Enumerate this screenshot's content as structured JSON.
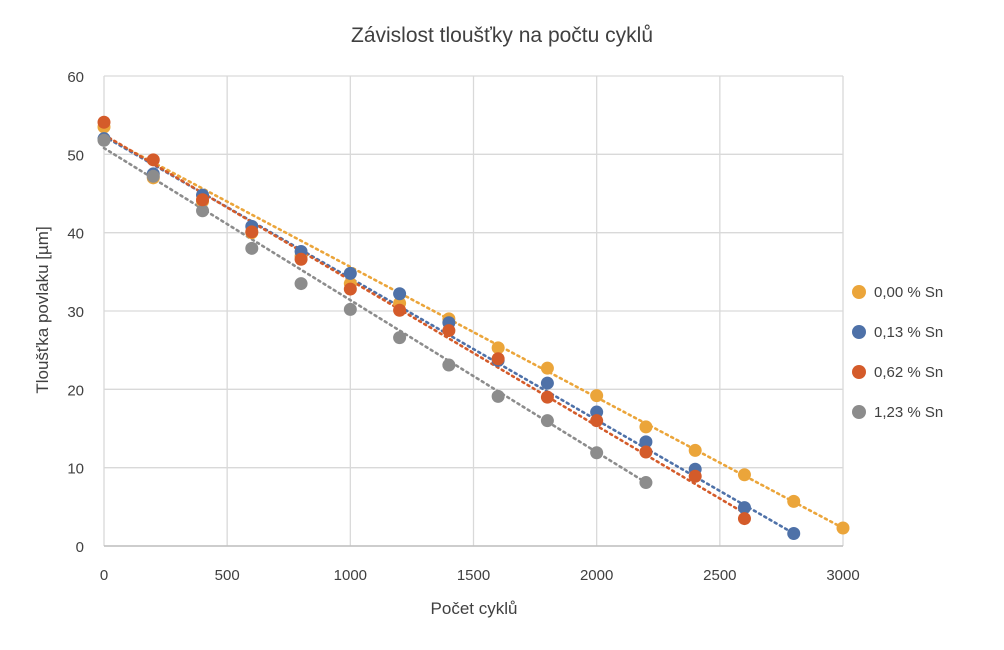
{
  "chart_data": {
    "type": "scatter",
    "title": "Závislost tloušťky na počtu cyklů",
    "xlabel": "Počet cyklů",
    "ylabel": "Tloušťka povlaku [µm]",
    "xlim": [
      0,
      3000
    ],
    "ylim": [
      0,
      60
    ],
    "xticks": [
      "0",
      "500",
      "1000",
      "1500",
      "2000",
      "2500",
      "3000"
    ],
    "yticks": [
      "0",
      "10",
      "20",
      "30",
      "40",
      "50",
      "60"
    ],
    "grid": true,
    "legend_position": "right",
    "trendlines": "linear, dotted",
    "series": [
      {
        "name": "0,00 % Sn",
        "color": "#EBA53A",
        "x": [
          0,
          200,
          400,
          600,
          800,
          1000,
          1200,
          1400,
          1600,
          1800,
          2000,
          2200,
          2400,
          2600,
          2800,
          3000
        ],
        "y": [
          53.5,
          47,
          44,
          40,
          37,
          33.5,
          31,
          29,
          25.3,
          22.7,
          19.2,
          15.2,
          12.2,
          9.1,
          5.7,
          2.3
        ],
        "trend": [
          52.3,
          2.3
        ]
      },
      {
        "name": "0,13 % Sn",
        "color": "#4E71A8",
        "x": [
          0,
          200,
          400,
          600,
          800,
          1000,
          1200,
          1400,
          1600,
          1800,
          2000,
          2200,
          2400,
          2600,
          2800
        ],
        "y": [
          52,
          47.5,
          44.8,
          40.8,
          37.6,
          34.8,
          32.2,
          28.5,
          23.7,
          20.8,
          17.1,
          13.3,
          9.8,
          4.9,
          1.6
        ],
        "trend": [
          52.3,
          1.6
        ]
      },
      {
        "name": "0,62 % Sn",
        "color": "#D45B2A",
        "x": [
          0,
          200,
          400,
          600,
          800,
          1000,
          1200,
          1400,
          1600,
          1800,
          2000,
          2200,
          2400,
          2600
        ],
        "y": [
          54.1,
          49.3,
          44.2,
          40.1,
          36.6,
          32.8,
          30.1,
          27.5,
          23.9,
          19,
          16,
          12,
          8.9,
          3.5
        ],
        "trend": [
          52.5,
          4.2
        ]
      },
      {
        "name": "1,23 % Sn",
        "color": "#8C8C8C",
        "x": [
          0,
          200,
          400,
          600,
          800,
          1000,
          1200,
          1400,
          1600,
          1800,
          2000,
          2200
        ],
        "y": [
          51.8,
          47.2,
          42.8,
          38,
          33.5,
          30.2,
          26.6,
          23.1,
          19.1,
          16,
          11.9,
          8.1
        ],
        "trend": [
          50.8,
          8.1
        ]
      }
    ]
  }
}
